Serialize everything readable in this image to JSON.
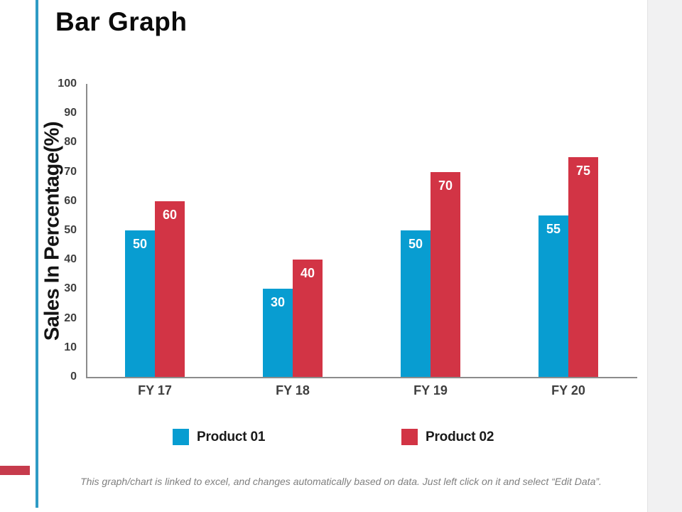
{
  "slide": {
    "title": "Bar Graph",
    "footer": "This graph/chart is linked to excel,  and changes automatically based on data. Just left click on it and select “Edit Data”."
  },
  "chart_data": {
    "type": "bar",
    "title": "Bar Graph",
    "categories": [
      "FY 17",
      "FY 18",
      "FY 19",
      "FY 20"
    ],
    "series": [
      {
        "name": "Product 01",
        "color": "#089DD1",
        "values": [
          50,
          30,
          50,
          55
        ]
      },
      {
        "name": "Product 02",
        "color": "#D23445",
        "values": [
          60,
          40,
          70,
          75
        ]
      }
    ],
    "xlabel": "",
    "ylabel": "Sales In Percentage(%)",
    "ylim": [
      0,
      100
    ],
    "yticks": [
      0,
      10,
      20,
      30,
      40,
      50,
      60,
      70,
      80,
      90,
      100
    ],
    "grid": false,
    "legend_position": "bottom",
    "data_labels": true
  },
  "colors": {
    "accent_line_blue": "#2E9BC5",
    "accent_bar_red": "#C63B4C",
    "axis_gray": "#8C8C8C",
    "tick_text": "#3F3F3F",
    "footer_text": "#7F7F7F",
    "right_strip": "#F1F1F2"
  }
}
